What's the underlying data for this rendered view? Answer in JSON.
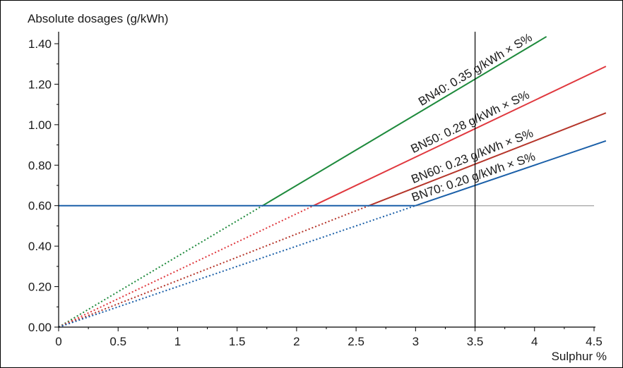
{
  "chart_data": {
    "type": "line",
    "ylabel": "Absolute dosages (g/kWh)",
    "xlabel": "Sulphur %",
    "xlim": [
      0,
      4.5
    ],
    "ylim": [
      0,
      1.4
    ],
    "x_ticks": [
      {
        "value": 0,
        "label": "0"
      },
      {
        "value": 0.5,
        "label": "0.5"
      },
      {
        "value": 1,
        "label": "1"
      },
      {
        "value": 1.5,
        "label": "1.5"
      },
      {
        "value": 2,
        "label": "2"
      },
      {
        "value": 2.5,
        "label": "2.5"
      },
      {
        "value": 3,
        "label": "3"
      },
      {
        "value": 3.5,
        "label": "3.5"
      },
      {
        "value": 4,
        "label": "4"
      },
      {
        "value": 4.5,
        "label": "4.5"
      }
    ],
    "y_ticks": [
      {
        "value": 0,
        "label": "0.00"
      },
      {
        "value": 0.2,
        "label": "0.20"
      },
      {
        "value": 0.4,
        "label": "0.40"
      },
      {
        "value": 0.6,
        "label": "0.60"
      },
      {
        "value": 0.8,
        "label": "0.80"
      },
      {
        "value": 1.0,
        "label": "1.00"
      },
      {
        "value": 1.2,
        "label": "1.20"
      },
      {
        "value": 1.4,
        "label": "1.40"
      }
    ],
    "grid": false,
    "series": [
      {
        "name": "BN40: 0.35 g/kWh × S%",
        "slope": 0.35,
        "x_end": 4.1,
        "color": "#1e8a3c",
        "label_x": 3.05
      },
      {
        "name": "BN50: 0.28 g/kWh × S%",
        "slope": 0.28,
        "x_end": 4.6,
        "color": "#e0383e",
        "label_x": 2.98
      },
      {
        "name": "BN60: 0.23 g/kWh × S%",
        "slope": 0.23,
        "x_end": 4.6,
        "color": "#b5352a",
        "label_x": 2.98
      },
      {
        "name": "BN70: 0.20 g/kWh × S%",
        "slope": 0.2,
        "x_end": 4.6,
        "color": "#1a5fa8",
        "label_x": 2.98
      }
    ],
    "min_dosage_line": {
      "y": 0.6,
      "x_start": 0,
      "x_end": 3.0,
      "color": "#1a5fa8",
      "gray_x_end": 4.5
    },
    "marker_line": {
      "x": 3.5
    },
    "colors": {
      "axis": "#000000",
      "reference": "#b0b0b0"
    }
  }
}
